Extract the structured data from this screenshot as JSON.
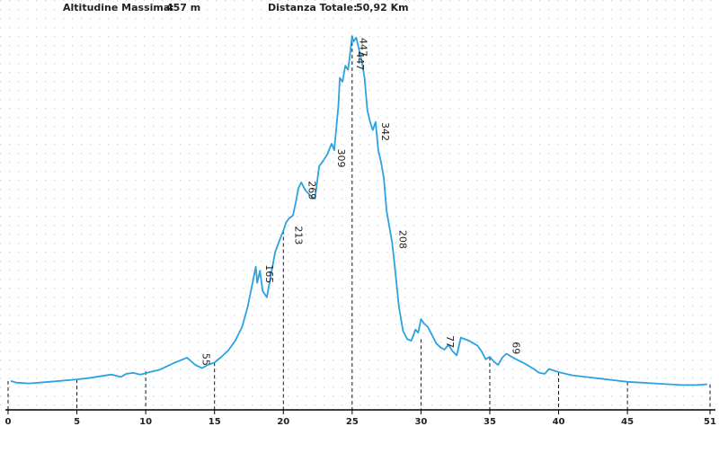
{
  "header": {
    "max_altitude_label": "Altitudine Massima:",
    "max_altitude_value": "457 m",
    "total_distance_label": "Distanza Totale:",
    "total_distance_value": "50,92 Km"
  },
  "chart_data": {
    "type": "area",
    "title": "",
    "xlabel": "",
    "ylabel": "",
    "x_unit": "km",
    "y_unit": "m",
    "xlim": [
      0,
      51
    ],
    "ylim": [
      0,
      470
    ],
    "x_ticks": [
      0,
      5,
      10,
      15,
      20,
      25,
      30,
      35,
      40,
      45,
      51
    ],
    "line_color": "#2aa3e0",
    "axis_color": "#000000",
    "grid": "dotted",
    "profile": [
      [
        0.2,
        18
      ],
      [
        0.6,
        16
      ],
      [
        1.5,
        15
      ],
      [
        3,
        17
      ],
      [
        5,
        20
      ],
      [
        6,
        22
      ],
      [
        7.5,
        26
      ],
      [
        8.2,
        23
      ],
      [
        8.6,
        27
      ],
      [
        9.1,
        28
      ],
      [
        9.6,
        26
      ],
      [
        10.3,
        29
      ],
      [
        11,
        32
      ],
      [
        12,
        40
      ],
      [
        13,
        47
      ],
      [
        13.6,
        38
      ],
      [
        14.1,
        34
      ],
      [
        14.5,
        38
      ],
      [
        15,
        41
      ],
      [
        15.5,
        48
      ],
      [
        16,
        56
      ],
      [
        16.5,
        68
      ],
      [
        17,
        85
      ],
      [
        17.4,
        110
      ],
      [
        17.7,
        135
      ],
      [
        18,
        160
      ],
      [
        18.1,
        140
      ],
      [
        18.3,
        155
      ],
      [
        18.5,
        130
      ],
      [
        18.8,
        122
      ],
      [
        19.1,
        150
      ],
      [
        19.4,
        178
      ],
      [
        19.7,
        192
      ],
      [
        20,
        205
      ],
      [
        20.2,
        215
      ],
      [
        20.4,
        220
      ],
      [
        20.7,
        224
      ],
      [
        20.9,
        240
      ],
      [
        21.1,
        258
      ],
      [
        21.3,
        265
      ],
      [
        21.6,
        255
      ],
      [
        22,
        248
      ],
      [
        22.3,
        245
      ],
      [
        22.6,
        285
      ],
      [
        22.9,
        292
      ],
      [
        23.2,
        300
      ],
      [
        23.5,
        313
      ],
      [
        23.7,
        305
      ],
      [
        24,
        360
      ],
      [
        24.1,
        395
      ],
      [
        24.3,
        390
      ],
      [
        24.5,
        410
      ],
      [
        24.7,
        405
      ],
      [
        24.8,
        418
      ],
      [
        25,
        447
      ],
      [
        25.1,
        440
      ],
      [
        25.3,
        445
      ],
      [
        25.5,
        430
      ],
      [
        25.7,
        415
      ],
      [
        25.9,
        395
      ],
      [
        26.1,
        355
      ],
      [
        26.3,
        340
      ],
      [
        26.5,
        330
      ],
      [
        26.7,
        340
      ],
      [
        26.9,
        305
      ],
      [
        27.1,
        290
      ],
      [
        27.3,
        270
      ],
      [
        27.5,
        230
      ],
      [
        27.7,
        210
      ],
      [
        27.9,
        190
      ],
      [
        28.1,
        160
      ],
      [
        28.4,
        110
      ],
      [
        28.7,
        80
      ],
      [
        29,
        70
      ],
      [
        29.3,
        68
      ],
      [
        29.6,
        82
      ],
      [
        29.8,
        78
      ],
      [
        30,
        95
      ],
      [
        30.2,
        90
      ],
      [
        30.5,
        85
      ],
      [
        30.8,
        75
      ],
      [
        31.1,
        65
      ],
      [
        31.4,
        60
      ],
      [
        31.7,
        57
      ],
      [
        32,
        63
      ],
      [
        32.3,
        55
      ],
      [
        32.6,
        50
      ],
      [
        32.9,
        72
      ],
      [
        33.2,
        70
      ],
      [
        33.5,
        68
      ],
      [
        33.8,
        65
      ],
      [
        34.1,
        62
      ],
      [
        34.4,
        55
      ],
      [
        34.7,
        45
      ],
      [
        35,
        48
      ],
      [
        35.3,
        42
      ],
      [
        35.6,
        38
      ],
      [
        35.9,
        47
      ],
      [
        36.2,
        52
      ],
      [
        36.8,
        46
      ],
      [
        37.5,
        40
      ],
      [
        38.2,
        33
      ],
      [
        38.6,
        28
      ],
      [
        39,
        27
      ],
      [
        39.3,
        33
      ],
      [
        40,
        29
      ],
      [
        41,
        25
      ],
      [
        42,
        23
      ],
      [
        43,
        21
      ],
      [
        44,
        19
      ],
      [
        45,
        17
      ],
      [
        46,
        16
      ],
      [
        47,
        15
      ],
      [
        48,
        14
      ],
      [
        49,
        13
      ],
      [
        50,
        13
      ],
      [
        50.8,
        14
      ]
    ],
    "markers": [
      {
        "x": 13.5,
        "y": 55,
        "label": "55"
      },
      {
        "x": 18.1,
        "y": 165,
        "label": "165"
      },
      {
        "x": 20.2,
        "y": 213,
        "label": "213"
      },
      {
        "x": 21.2,
        "y": 269,
        "label": "269"
      },
      {
        "x": 23.3,
        "y": 309,
        "label": "309"
      },
      {
        "x": 24.7,
        "y": 430,
        "label": "447"
      },
      {
        "x": 24.9,
        "y": 447,
        "label": "447"
      },
      {
        "x": 26.5,
        "y": 342,
        "label": "342"
      },
      {
        "x": 27.8,
        "y": 208,
        "label": "208"
      },
      {
        "x": 31.2,
        "y": 77,
        "label": "77"
      },
      {
        "x": 36,
        "y": 69,
        "label": "69"
      }
    ],
    "vertical_markers": [
      0,
      5,
      10,
      15,
      20,
      25,
      30,
      35,
      40,
      45,
      51
    ],
    "vertical_marker_heights": [
      18,
      20,
      30,
      41,
      205,
      447,
      70,
      48,
      29,
      17,
      14
    ]
  }
}
